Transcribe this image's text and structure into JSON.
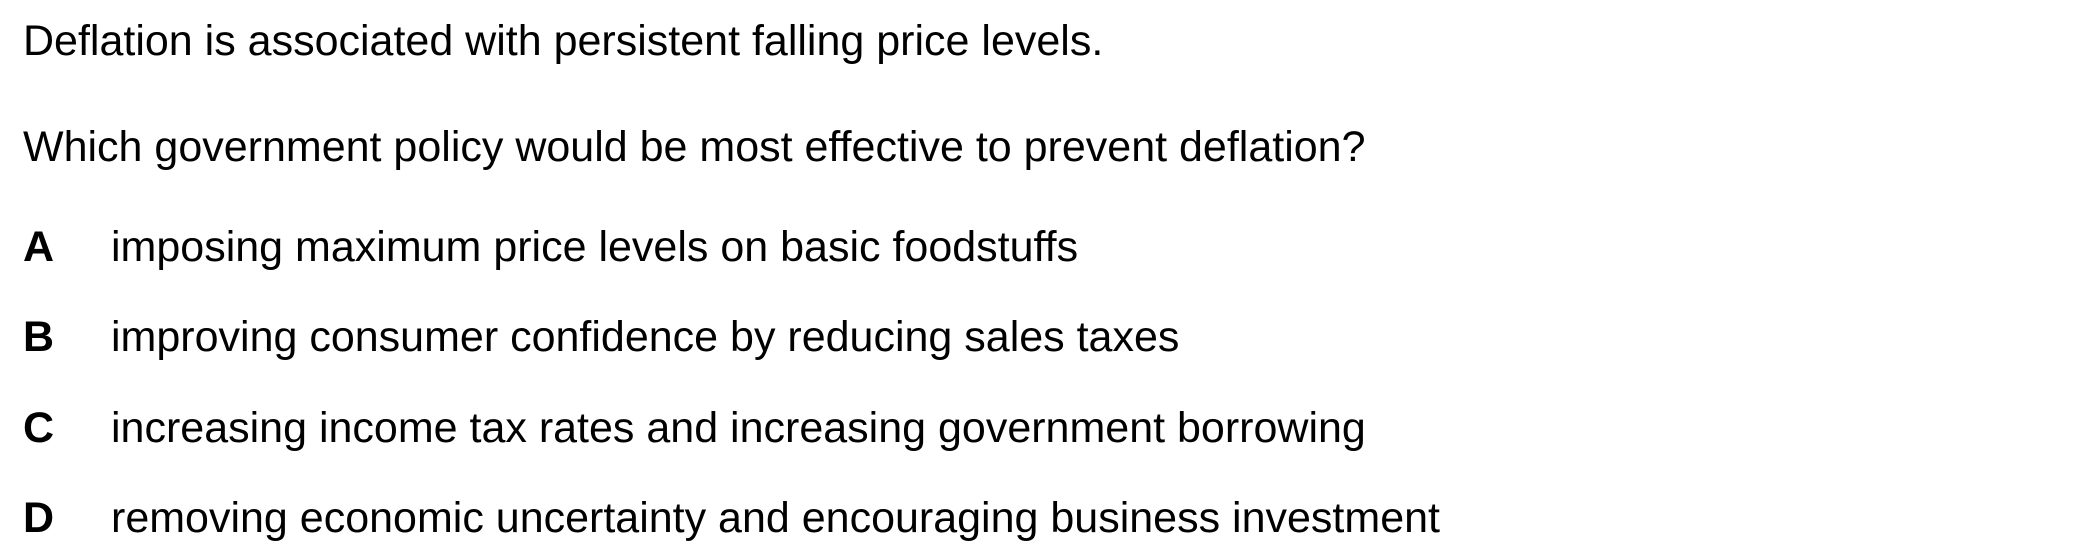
{
  "question": {
    "statement": "Deflation is associated with persistent falling price levels.",
    "prompt": "Which government policy would be most effective to prevent deflation?"
  },
  "options": [
    {
      "letter": "A",
      "text": "imposing maximum price levels on basic foodstuffs"
    },
    {
      "letter": "B",
      "text": "improving consumer confidence by reducing sales taxes"
    },
    {
      "letter": "C",
      "text": "increasing income tax rates and increasing government borrowing"
    },
    {
      "letter": "D",
      "text": "removing economic uncertainty and encouraging business investment"
    }
  ]
}
